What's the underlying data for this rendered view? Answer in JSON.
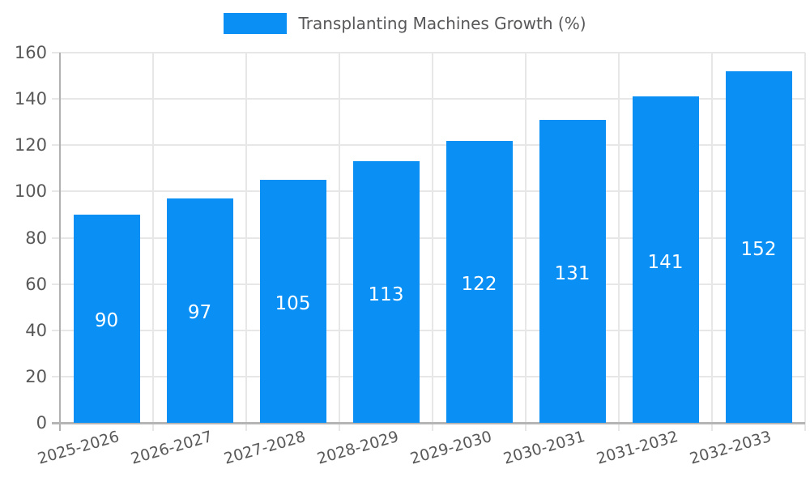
{
  "legend": {
    "label": "Transplanting Machines Growth (%)"
  },
  "colors": {
    "bar": "#0a90f5",
    "grid": "#e7e7e7",
    "axis": "#b1b1b1",
    "tick_text": "#595959",
    "value_text": "#ffffff",
    "legend_text": "#58585a",
    "background": "#ffffff"
  },
  "chart_data": {
    "type": "bar",
    "title": "Transplanting Machines Growth (%)",
    "categories": [
      "2025-2026",
      "2026-2027",
      "2027-2028",
      "2028-2029",
      "2029-2030",
      "2030-2031",
      "2031-2032",
      "2032-2033"
    ],
    "values": [
      90,
      97,
      105,
      113,
      122,
      131,
      141,
      152
    ],
    "series_name": "Transplanting Machines Growth (%)",
    "xlabel": "",
    "ylabel": "",
    "ylim": [
      0,
      160
    ],
    "yticks": [
      0,
      20,
      40,
      60,
      80,
      100,
      120,
      140,
      160
    ],
    "grid": true,
    "value_labels": "inside-center",
    "legend_position": "top-center"
  }
}
